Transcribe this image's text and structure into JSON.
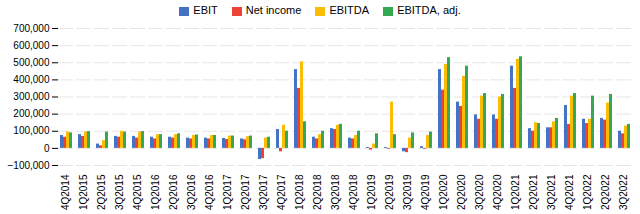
{
  "chart_data": {
    "type": "bar",
    "categories": [
      "4Q2014",
      "1Q2015",
      "2Q2015",
      "3Q2015",
      "4Q2015",
      "1Q2016",
      "2Q2016",
      "3Q2016",
      "4Q2016",
      "1Q2017",
      "2Q2017",
      "3Q2017",
      "4Q2017",
      "1Q2018",
      "2Q2018",
      "3Q2018",
      "4Q2018",
      "1Q2019",
      "2Q2019",
      "3Q2019",
      "4Q2019",
      "1Q2020",
      "2Q2020",
      "3Q2020",
      "4Q2020",
      "1Q2021",
      "2Q2021",
      "3Q2021",
      "4Q2021",
      "1Q2022",
      "2Q2022",
      "3Q2022"
    ],
    "series": [
      {
        "name": "EBIT",
        "color": "#4472c4",
        "values": [
          75000,
          80000,
          25000,
          70000,
          70000,
          65000,
          65000,
          60000,
          60000,
          58000,
          55000,
          -65000,
          110000,
          460000,
          65000,
          115000,
          60000,
          5000,
          5000,
          -20000,
          10000,
          460000,
          270000,
          195000,
          195000,
          480000,
          115000,
          120000,
          250000,
          170000,
          175000,
          100000
        ]
      },
      {
        "name": "Net income",
        "color": "#ea4335",
        "values": [
          65000,
          70000,
          15000,
          65000,
          60000,
          55000,
          60000,
          55000,
          55000,
          52000,
          50000,
          -60000,
          -20000,
          350000,
          55000,
          110000,
          55000,
          -10000,
          -5000,
          -25000,
          -5000,
          340000,
          245000,
          170000,
          170000,
          350000,
          100000,
          120000,
          140000,
          145000,
          165000,
          85000
        ]
      },
      {
        "name": "EBITDA",
        "color": "#fbbc04",
        "values": [
          95000,
          95000,
          45000,
          100000,
          95000,
          80000,
          80000,
          75000,
          75000,
          72000,
          68000,
          60000,
          135000,
          505000,
          80000,
          135000,
          75000,
          25000,
          270000,
          60000,
          75000,
          490000,
          420000,
          305000,
          300000,
          520000,
          150000,
          155000,
          305000,
          170000,
          265000,
          130000
        ]
      },
      {
        "name": "EBITDA, adj.",
        "color": "#34a853",
        "values": [
          90000,
          98000,
          95000,
          95000,
          98000,
          80000,
          85000,
          78000,
          75000,
          72000,
          72000,
          65000,
          100000,
          155000,
          100000,
          140000,
          100000,
          85000,
          80000,
          90000,
          95000,
          530000,
          480000,
          320000,
          315000,
          535000,
          145000,
          175000,
          320000,
          305000,
          315000,
          140000
        ]
      }
    ],
    "ylim": [
      -100000,
      700000
    ],
    "yticks": [
      {
        "value": -100000,
        "label": "−100,000"
      },
      0,
      {
        "value": 100000,
        "label": "100,000"
      },
      {
        "value": 200000,
        "label": "200,000"
      },
      {
        "value": 300000,
        "label": "300,000"
      },
      {
        "value": 400000,
        "label": "400,000"
      },
      {
        "value": 500000,
        "label": "500,000"
      },
      {
        "value": 600000,
        "label": "600,000"
      },
      {
        "value": 700000,
        "label": "700,000"
      }
    ],
    "grid": true,
    "legend": "top"
  }
}
